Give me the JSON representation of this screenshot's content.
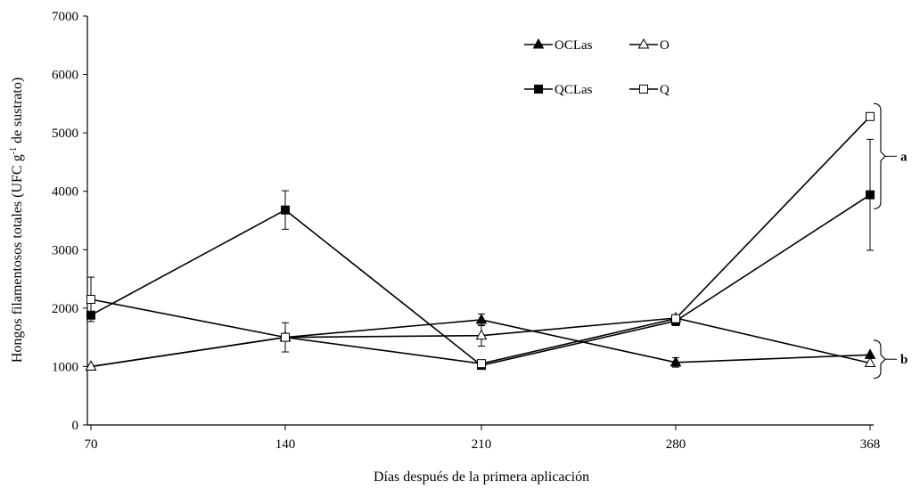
{
  "chart_data": {
    "type": "line",
    "xlabel": "Días después de la primera aplicación",
    "ylabel_main": "Hongos filamentosos totales (UFC g",
    "ylabel_sup": "-1",
    "ylabel_tail": " de sustrato)",
    "x": [
      "70",
      "140",
      "210",
      "280",
      "368"
    ],
    "ylim": [
      0,
      7000
    ],
    "yticks": [
      0,
      1000,
      2000,
      3000,
      4000,
      5000,
      6000,
      7000
    ],
    "grid": false,
    "legend_position": "top-right",
    "series": [
      {
        "name": "OCLas",
        "marker": "filled-triangle",
        "values": [
          1000,
          1500,
          1800,
          1070,
          1200
        ],
        "errors": [
          0,
          0,
          100,
          80,
          0
        ]
      },
      {
        "name": "O",
        "marker": "open-triangle",
        "values": [
          1000,
          1500,
          1530,
          1830,
          1060
        ],
        "errors": [
          0,
          250,
          180,
          0,
          0
        ]
      },
      {
        "name": "QCLas",
        "marker": "filled-square",
        "values": [
          1880,
          3680,
          1020,
          1780,
          3940
        ],
        "errors": [
          0,
          330,
          0,
          80,
          950
        ]
      },
      {
        "name": "Q",
        "marker": "open-square",
        "values": [
          2150,
          1500,
          1050,
          1820,
          5280
        ],
        "errors": [
          380,
          0,
          0,
          0,
          0
        ]
      }
    ],
    "group_labels": [
      {
        "text": "a",
        "y_range": [
          3700,
          5500
        ]
      },
      {
        "text": "b",
        "y_range": [
          800,
          1450
        ]
      }
    ]
  }
}
